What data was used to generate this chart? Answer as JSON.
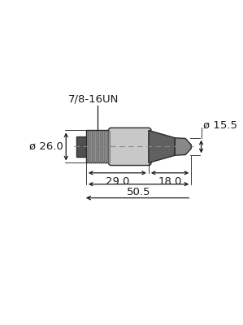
{
  "bg_color": "#ffffff",
  "line_color": "#2a2a2a",
  "knurl_color": "#909090",
  "knurl_line_color": "#707070",
  "body_color": "#c8c8c8",
  "strain_color": "#606060",
  "plug_color": "#505050",
  "cable_tip_color": "#888888",
  "dim_color": "#1a1a1a",
  "center_line_color": "#888888",
  "label_7816un": "7/8-16UN",
  "label_d155": "ø 15.5",
  "label_d260": "ø 26.0",
  "label_290": "29.0",
  "label_180": "18.0",
  "label_505": "50.5",
  "font_size": 9.5
}
